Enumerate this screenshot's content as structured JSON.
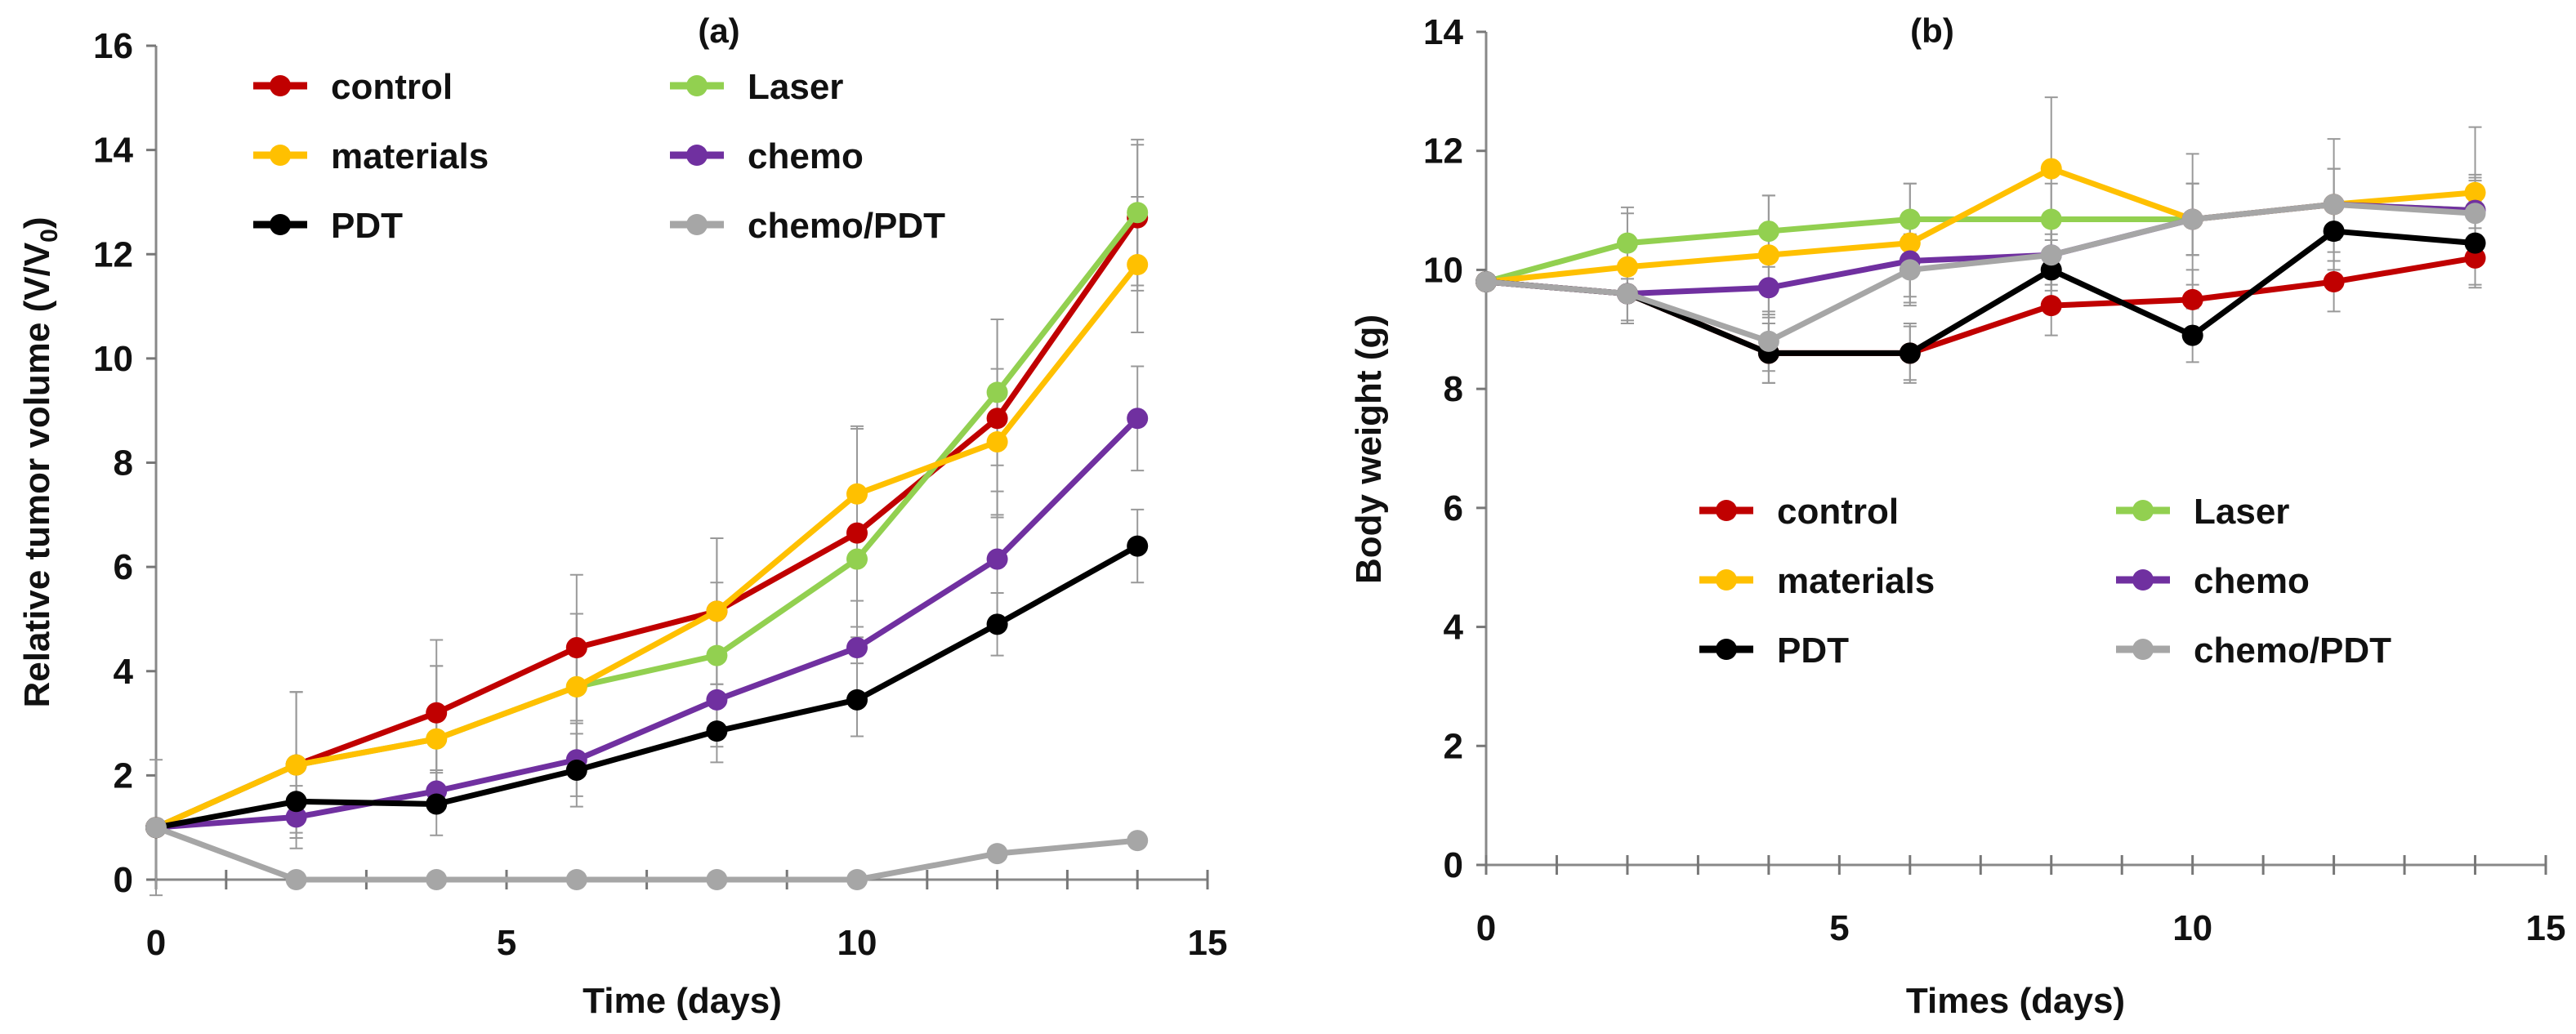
{
  "chart_data": [
    {
      "type": "line",
      "title": "(a)",
      "xlabel": "Time (days)",
      "ylabel": "Relative tumor volume (V/V",
      "ylabel_sub": "0",
      "ylabel_end": ")",
      "xlim": [
        0,
        15
      ],
      "ylim": [
        0,
        16
      ],
      "xticks": [
        0,
        5,
        10,
        15
      ],
      "yticks": [
        0,
        2,
        4,
        6,
        8,
        10,
        12,
        14,
        16
      ],
      "grid": false,
      "legend_placement": "top",
      "x": [
        0,
        2,
        4,
        6,
        8,
        10,
        12,
        14
      ],
      "series": [
        {
          "name": "control",
          "color": "#c00000",
          "values": [
            1,
            2.2,
            3.2,
            4.45,
            5.15,
            6.65,
            8.85,
            12.7
          ],
          "errors": [
            0,
            1.4,
            1.4,
            1.4,
            1.4,
            2.0,
            1.9,
            1.4
          ]
        },
        {
          "name": "Laser",
          "color": "#92d050",
          "values": [
            1,
            2.2,
            2.7,
            3.7,
            4.3,
            6.15,
            9.35,
            12.8
          ],
          "errors": [
            0,
            1.4,
            1.4,
            1.4,
            1.4,
            1.3,
            1.4,
            1.4
          ]
        },
        {
          "name": "materials",
          "color": "#ffc000",
          "values": [
            1,
            2.2,
            2.7,
            3.7,
            5.15,
            7.4,
            8.4,
            11.8
          ],
          "errors": [
            0,
            1.4,
            1.4,
            1.4,
            1.4,
            1.3,
            1.4,
            1.3
          ]
        },
        {
          "name": "chemo",
          "color": "#7030a0",
          "values": [
            1,
            1.2,
            1.7,
            2.3,
            3.45,
            4.45,
            6.15,
            8.85
          ],
          "errors": [
            0,
            0.6,
            0.4,
            0.7,
            0.9,
            0.9,
            1.3,
            1.0
          ]
        },
        {
          "name": "PDT",
          "color": "#000000",
          "values": [
            1,
            1.5,
            1.45,
            2.1,
            2.85,
            3.45,
            4.9,
            6.4
          ],
          "errors": [
            0,
            0.6,
            0.6,
            0.7,
            0.6,
            0.7,
            0.6,
            0.7
          ]
        },
        {
          "name": "chemo/PDT",
          "color": "#a6a6a6",
          "values": [
            1,
            0,
            0,
            0,
            0,
            0,
            0.5,
            0.75
          ],
          "errors": [
            1.3,
            0,
            0,
            0,
            0,
            0,
            0,
            0
          ]
        }
      ]
    },
    {
      "type": "line",
      "title": "(b)",
      "xlabel": "Times (days)",
      "ylabel": "Body weight (g)",
      "xlim": [
        0,
        15
      ],
      "ylim": [
        0,
        14
      ],
      "xticks": [
        0,
        5,
        10,
        15
      ],
      "yticks": [
        0,
        2,
        4,
        6,
        8,
        10,
        12,
        14
      ],
      "grid": false,
      "legend_placement": "center",
      "x": [
        0,
        2,
        4,
        6,
        8,
        10,
        12,
        14
      ],
      "series": [
        {
          "name": "control",
          "color": "#c00000",
          "values": [
            9.8,
            9.6,
            8.6,
            8.6,
            9.4,
            9.5,
            9.8,
            10.2
          ],
          "errors": [
            0,
            0.5,
            0.5,
            0.5,
            0.5,
            0.5,
            0.5,
            0.5
          ]
        },
        {
          "name": "Laser",
          "color": "#92d050",
          "values": [
            9.8,
            10.45,
            10.65,
            10.85,
            10.85,
            10.85,
            11.1,
            11.0
          ],
          "errors": [
            0,
            0.6,
            0.6,
            0.6,
            0.6,
            0.6,
            0.6,
            0.5
          ]
        },
        {
          "name": "materials",
          "color": "#ffc000",
          "values": [
            9.8,
            10.05,
            10.25,
            10.45,
            11.7,
            10.85,
            11.1,
            11.3
          ],
          "errors": [
            0,
            0.9,
            1.0,
            1.0,
            1.2,
            1.1,
            1.1,
            1.1
          ]
        },
        {
          "name": "chemo",
          "color": "#7030a0",
          "values": [
            9.8,
            9.6,
            9.7,
            10.15,
            10.25,
            10.85,
            11.1,
            11.0
          ],
          "errors": [
            0,
            0.5,
            0.5,
            0.6,
            0.5,
            0.6,
            0.6,
            0.6
          ]
        },
        {
          "name": "PDT",
          "color": "#000000",
          "values": [
            9.8,
            9.6,
            8.6,
            8.6,
            10.0,
            8.9,
            10.65,
            10.45
          ],
          "errors": [
            0,
            0.5,
            0.5,
            0.45,
            0.6,
            0.45,
            0.5,
            0.7
          ]
        },
        {
          "name": "chemo/PDT",
          "color": "#a6a6a6",
          "values": [
            9.8,
            9.6,
            8.8,
            10.0,
            10.25,
            10.85,
            11.1,
            10.95
          ],
          "errors": [
            0,
            0.5,
            0.5,
            0.6,
            0.6,
            0.6,
            0.6,
            0.6
          ]
        }
      ]
    }
  ]
}
